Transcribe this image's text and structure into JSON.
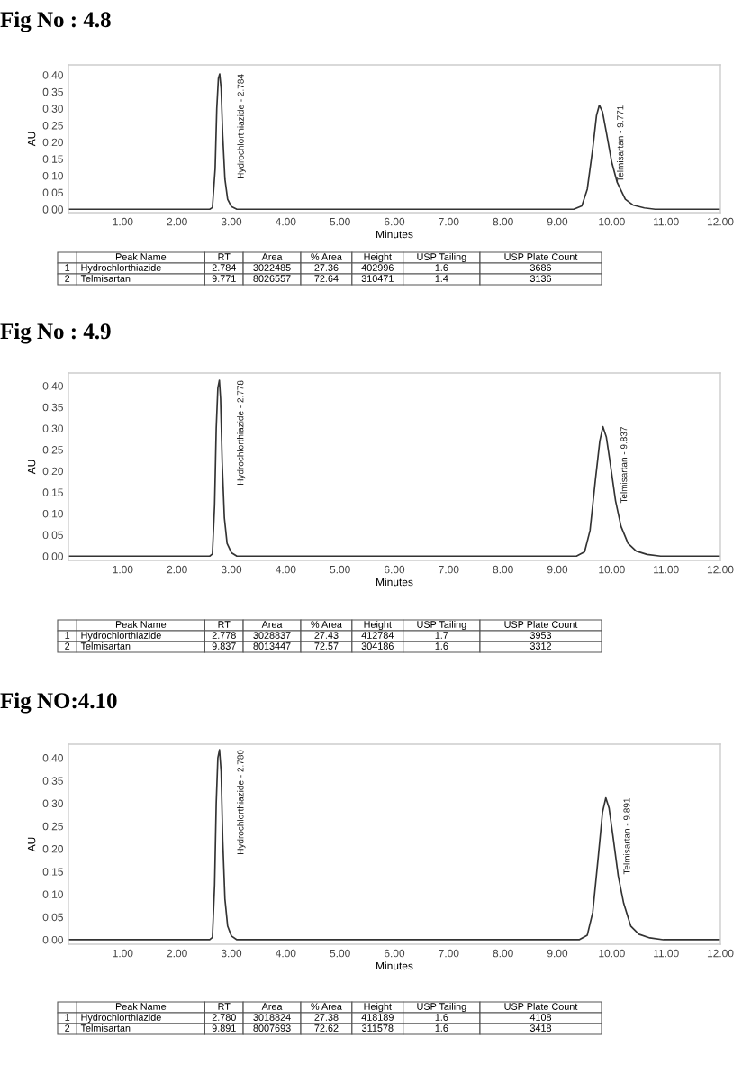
{
  "chart_data": [
    {
      "type": "line",
      "title": "Fig No : 4.8",
      "xlabel": "Minutes",
      "ylabel": "AU",
      "xlim": [
        0,
        12
      ],
      "ylim": [
        -0.01,
        0.43
      ],
      "xticks": [
        {
          "value": 1,
          "label": "1.00"
        },
        {
          "value": 2,
          "label": "2.00"
        },
        {
          "value": 3,
          "label": "3.00"
        },
        {
          "value": 4,
          "label": "4.00"
        },
        {
          "value": 5,
          "label": "5.00"
        },
        {
          "value": 6,
          "label": "6.00"
        },
        {
          "value": 7,
          "label": "7.00"
        },
        {
          "value": 8,
          "label": "8.00"
        },
        {
          "value": 9,
          "label": "9.00"
        },
        {
          "value": 10,
          "label": "10.00"
        },
        {
          "value": 11,
          "label": "11.00"
        },
        {
          "value": 12,
          "label": "12.00"
        }
      ],
      "yticks": [
        {
          "value": 0,
          "label": "0.00"
        },
        {
          "value": 0.05,
          "label": "0.05"
        },
        {
          "value": 0.1,
          "label": "0.10"
        },
        {
          "value": 0.15,
          "label": "0.15"
        },
        {
          "value": 0.2,
          "label": "0.20"
        },
        {
          "value": 0.25,
          "label": "0.25"
        },
        {
          "value": 0.3,
          "label": "0.30"
        },
        {
          "value": 0.35,
          "label": "0.35"
        },
        {
          "value": 0.4,
          "label": "0.40"
        }
      ],
      "grid": false,
      "legend": false,
      "marker": "none",
      "line_style": "solid",
      "series": [
        {
          "color": "#333333",
          "x": [
            0.0,
            2.6,
            2.65,
            2.7,
            2.73,
            2.76,
            2.784,
            2.81,
            2.84,
            2.88,
            2.93,
            3.0,
            3.1,
            9.3,
            9.45,
            9.55,
            9.65,
            9.72,
            9.771,
            9.83,
            9.9,
            10.0,
            10.1,
            10.25,
            10.4,
            10.6,
            10.8,
            12.0
          ],
          "values": [
            0,
            0,
            0.005,
            0.12,
            0.3,
            0.39,
            0.403,
            0.36,
            0.22,
            0.09,
            0.03,
            0.008,
            0,
            0,
            0.01,
            0.06,
            0.18,
            0.28,
            0.31,
            0.29,
            0.23,
            0.14,
            0.08,
            0.03,
            0.012,
            0.004,
            0,
            0
          ]
        }
      ],
      "annotations": [
        {
          "text": "Hydrochlorthiazide - 2.784",
          "x": 2.784,
          "y": 0.403
        },
        {
          "text": "Telmisartan - 9.771",
          "x": 9.771,
          "y": 0.31
        },
        "Peak Name",
        "RT",
        "Area",
        "% Area",
        "Height",
        "USP Tailing",
        "USP Plate Count",
        "1",
        "Hydrochlorthiazide",
        "2.784",
        "3022485",
        "27.36",
        "402996",
        "1.6",
        "3686",
        "2",
        "Telmisartan",
        "9.771",
        "8026557",
        "72.64",
        "310471",
        "1.4",
        "3136"
      ]
    },
    {
      "type": "line",
      "title": "Fig No : 4.9",
      "xlabel": "Minutes",
      "ylabel": "AU",
      "xlim": [
        0,
        12
      ],
      "ylim": [
        -0.01,
        0.43
      ],
      "xticks": [
        {
          "value": 1,
          "label": "1.00"
        },
        {
          "value": 2,
          "label": "2.00"
        },
        {
          "value": 3,
          "label": "3.00"
        },
        {
          "value": 4,
          "label": "4.00"
        },
        {
          "value": 5,
          "label": "5.00"
        },
        {
          "value": 6,
          "label": "6.00"
        },
        {
          "value": 7,
          "label": "7.00"
        },
        {
          "value": 8,
          "label": "8.00"
        },
        {
          "value": 9,
          "label": "9.00"
        },
        {
          "value": 10,
          "label": "10.00"
        },
        {
          "value": 11,
          "label": "11.00"
        },
        {
          "value": 12,
          "label": "12.00"
        }
      ],
      "yticks": [
        {
          "value": 0,
          "label": "0.00"
        },
        {
          "value": 0.05,
          "label": "0.05"
        },
        {
          "value": 0.1,
          "label": "0.10"
        },
        {
          "value": 0.15,
          "label": "0.15"
        },
        {
          "value": 0.2,
          "label": "0.20"
        },
        {
          "value": 0.25,
          "label": "0.25"
        },
        {
          "value": 0.3,
          "label": "0.30"
        },
        {
          "value": 0.35,
          "label": "0.35"
        },
        {
          "value": 0.4,
          "label": "0.40"
        }
      ],
      "grid": false,
      "legend": false,
      "marker": "none",
      "line_style": "solid",
      "series": [
        {
          "color": "#333333",
          "x": [
            0.0,
            2.6,
            2.65,
            2.69,
            2.72,
            2.75,
            2.778,
            2.8,
            2.83,
            2.87,
            2.92,
            3.0,
            3.1,
            9.35,
            9.5,
            9.6,
            9.7,
            9.78,
            9.837,
            9.9,
            9.97,
            10.07,
            10.17,
            10.3,
            10.45,
            10.65,
            10.9,
            12.0
          ],
          "values": [
            0,
            0,
            0.005,
            0.12,
            0.3,
            0.395,
            0.413,
            0.37,
            0.22,
            0.09,
            0.03,
            0.008,
            0,
            0,
            0.01,
            0.06,
            0.18,
            0.27,
            0.304,
            0.28,
            0.22,
            0.13,
            0.07,
            0.03,
            0.012,
            0.004,
            0,
            0
          ]
        }
      ],
      "annotations": [
        {
          "text": "Hydrochlorthiazide - 2.778",
          "x": 2.778,
          "y": 0.413
        },
        {
          "text": "Telmisartan - 9.837",
          "x": 9.837,
          "y": 0.304
        },
        "Peak Name",
        "RT",
        "Area",
        "% Area",
        "Height",
        "USP Tailing",
        "USP Plate Count",
        "1",
        "Hydrochlorthiazide",
        "2.778",
        "3028837",
        "27.43",
        "412784",
        "1.7",
        "3953",
        "2",
        "Telmisartan",
        "9.837",
        "8013447",
        "72.57",
        "304186",
        "1.6",
        "3312"
      ]
    },
    {
      "type": "line",
      "title": "Fig NO:4.10",
      "xlabel": "Minutes",
      "ylabel": "AU",
      "xlim": [
        0,
        12
      ],
      "ylim": [
        -0.01,
        0.43
      ],
      "xticks": [
        {
          "value": 1,
          "label": "1.00"
        },
        {
          "value": 2,
          "label": "2.00"
        },
        {
          "value": 3,
          "label": "3.00"
        },
        {
          "value": 4,
          "label": "4.00"
        },
        {
          "value": 5,
          "label": "5.00"
        },
        {
          "value": 6,
          "label": "6.00"
        },
        {
          "value": 7,
          "label": "7.00"
        },
        {
          "value": 8,
          "label": "8.00"
        },
        {
          "value": 9,
          "label": "9.00"
        },
        {
          "value": 10,
          "label": "10.00"
        },
        {
          "value": 11,
          "label": "11.00"
        },
        {
          "value": 12,
          "label": "12.00"
        }
      ],
      "yticks": [
        {
          "value": 0,
          "label": "0.00"
        },
        {
          "value": 0.05,
          "label": "0.05"
        },
        {
          "value": 0.1,
          "label": "0.10"
        },
        {
          "value": 0.15,
          "label": "0.15"
        },
        {
          "value": 0.2,
          "label": "0.20"
        },
        {
          "value": 0.25,
          "label": "0.25"
        },
        {
          "value": 0.3,
          "label": "0.30"
        },
        {
          "value": 0.35,
          "label": "0.35"
        },
        {
          "value": 0.4,
          "label": "0.40"
        }
      ],
      "grid": false,
      "legend": false,
      "marker": "none",
      "line_style": "solid",
      "series": [
        {
          "color": "#333333",
          "x": [
            0.0,
            2.6,
            2.65,
            2.69,
            2.72,
            2.75,
            2.78,
            2.81,
            2.84,
            2.88,
            2.93,
            3.0,
            3.1,
            9.4,
            9.55,
            9.65,
            9.75,
            9.83,
            9.891,
            9.95,
            10.02,
            10.12,
            10.22,
            10.35,
            10.5,
            10.7,
            10.95,
            12.0
          ],
          "values": [
            0,
            0,
            0.005,
            0.12,
            0.3,
            0.4,
            0.418,
            0.37,
            0.22,
            0.09,
            0.03,
            0.008,
            0,
            0,
            0.01,
            0.06,
            0.18,
            0.28,
            0.312,
            0.29,
            0.23,
            0.14,
            0.08,
            0.03,
            0.012,
            0.004,
            0,
            0
          ]
        }
      ],
      "annotations": [
        {
          "text": "Hydrochlorthiazide - 2.780",
          "x": 2.78,
          "y": 0.418
        },
        {
          "text": "Telmisartan - 9.891",
          "x": 9.891,
          "y": 0.312
        },
        "Peak Name",
        "RT",
        "Area",
        "% Area",
        "Height",
        "USP Tailing",
        "USP Plate Count",
        "1",
        "Hydrochlorthiazide",
        "2.780",
        "3018824",
        "27.38",
        "418189",
        "1.6",
        "4108",
        "2",
        "Telmisartan",
        "9.891",
        "8007693",
        "72.62",
        "311578",
        "1.6",
        "3418"
      ]
    }
  ]
}
